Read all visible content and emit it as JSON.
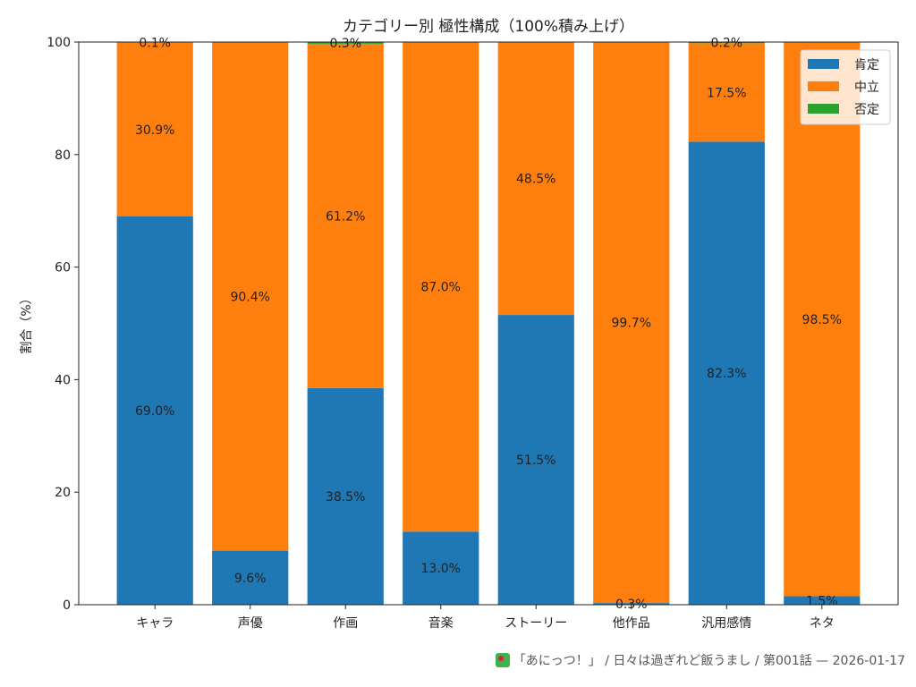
{
  "chart_data": {
    "type": "bar",
    "stacked": true,
    "title": "カテゴリー別 極性構成（100%積み上げ）",
    "xlabel": "",
    "ylabel": "割合（%）",
    "ylim": [
      0,
      100
    ],
    "yticks": [
      0,
      20,
      40,
      60,
      80,
      100
    ],
    "grid": false,
    "legend_position": "top-right",
    "categories": [
      "キャラ",
      "声優",
      "作画",
      "音楽",
      "ストーリー",
      "他作品",
      "汎用感情",
      "ネタ"
    ],
    "series": [
      {
        "name": "肯定",
        "color": "#1f77b4",
        "values": [
          69.0,
          9.6,
          38.5,
          13.0,
          51.5,
          0.3,
          82.3,
          1.5
        ]
      },
      {
        "name": "中立",
        "color": "#ff7f0e",
        "values": [
          30.9,
          90.4,
          61.2,
          87.0,
          48.5,
          99.7,
          17.5,
          98.5
        ]
      },
      {
        "name": "否定",
        "color": "#2ca02c",
        "values": [
          0.1,
          0.0,
          0.3,
          0.0,
          0.0,
          0.0,
          0.2,
          0.0
        ]
      }
    ],
    "labels": [
      [
        "69.0%",
        "30.9%",
        "0.1%"
      ],
      [
        "9.6%",
        "90.4%",
        null
      ],
      [
        "38.5%",
        "61.2%",
        "0.3%"
      ],
      [
        "13.0%",
        "87.0%",
        null
      ],
      [
        "51.5%",
        "48.5%",
        null
      ],
      [
        "0.3%",
        "99.7%",
        null
      ],
      [
        "82.3%",
        "17.5%",
        "0.2%"
      ],
      [
        "1.5%",
        "98.5%",
        null
      ]
    ]
  },
  "footer": {
    "icon": "anime-app-icon",
    "text": "「あにっつ！」 / 日々は過ぎれど飯うまし / 第001話 — 2026-01-17"
  }
}
